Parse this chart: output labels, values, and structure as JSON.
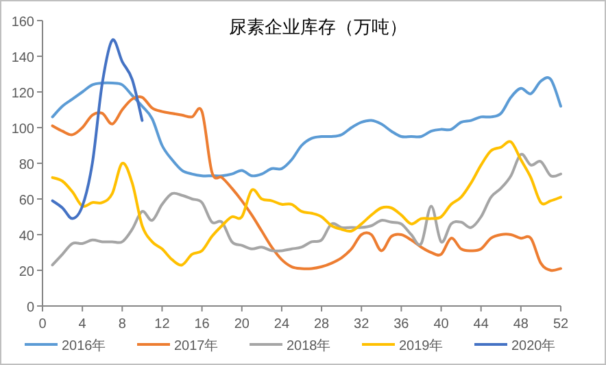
{
  "chart_data": {
    "type": "line",
    "title": "尿素企业库存（万吨）",
    "x": [
      1,
      2,
      3,
      4,
      5,
      6,
      7,
      8,
      9,
      10,
      11,
      12,
      13,
      14,
      15,
      16,
      17,
      18,
      19,
      20,
      21,
      22,
      23,
      24,
      25,
      26,
      27,
      28,
      29,
      30,
      31,
      32,
      33,
      34,
      35,
      36,
      37,
      38,
      39,
      40,
      41,
      42,
      43,
      44,
      45,
      46,
      47,
      48,
      49,
      50,
      51,
      52
    ],
    "series": [
      {
        "name": "2016年",
        "color": "#5b9bd5",
        "values": [
          106,
          112,
          116,
          120,
          124,
          125,
          125,
          124,
          118,
          112,
          105,
          90,
          82,
          76,
          74,
          73,
          73,
          73,
          74,
          76,
          73,
          74,
          77,
          77,
          82,
          90,
          94,
          95,
          95,
          96,
          100,
          103,
          104,
          102,
          98,
          95,
          95,
          95,
          98,
          99,
          99,
          103,
          104,
          106,
          106,
          108,
          117,
          122,
          119,
          126,
          127,
          112
        ]
      },
      {
        "name": "2017年",
        "color": "#ed7d31",
        "values": [
          101,
          98,
          96,
          100,
          107,
          108,
          102,
          110,
          116,
          117,
          111,
          109,
          108,
          107,
          106,
          109,
          75,
          72,
          66,
          59,
          51,
          42,
          33,
          26,
          22,
          21,
          21,
          22,
          24,
          27,
          32,
          40,
          40,
          31,
          39,
          40,
          37,
          33,
          30,
          29,
          38,
          32,
          31,
          32,
          38,
          40,
          40,
          38,
          38,
          24,
          20,
          21
        ]
      },
      {
        "name": "2018年",
        "color": "#a5a5a5",
        "values": [
          23,
          29,
          35,
          35,
          37,
          36,
          36,
          36,
          43,
          53,
          48,
          57,
          63,
          62,
          60,
          58,
          47,
          47,
          36,
          34,
          32,
          33,
          31,
          31,
          32,
          33,
          36,
          37,
          46,
          44,
          44,
          44,
          45,
          48,
          47,
          46,
          40,
          35,
          56,
          36,
          46,
          47,
          44,
          50,
          61,
          66,
          73,
          85,
          79,
          81,
          73,
          74
        ]
      },
      {
        "name": "2019年",
        "color": "#ffc000",
        "values": [
          72,
          70,
          64,
          56,
          58,
          58,
          63,
          80,
          69,
          45,
          36,
          32,
          26,
          23,
          29,
          31,
          39,
          45,
          50,
          50,
          65,
          60,
          59,
          57,
          57,
          53,
          52,
          50,
          45,
          43,
          42,
          46,
          51,
          55,
          55,
          51,
          46,
          49,
          49,
          50,
          57,
          61,
          69,
          79,
          87,
          89,
          92,
          82,
          72,
          58,
          59,
          61
        ]
      },
      {
        "name": "2020年",
        "color": "#4472c4",
        "x": [
          1,
          2,
          3,
          4,
          5,
          6,
          7,
          8,
          9,
          10
        ],
        "values": [
          59,
          55,
          49,
          56,
          80,
          125,
          149,
          137,
          127,
          104
        ]
      }
    ],
    "xlim": [
      0,
      52
    ],
    "xticks": [
      0,
      4,
      8,
      12,
      16,
      20,
      24,
      28,
      32,
      36,
      40,
      44,
      48,
      52
    ],
    "ylim": [
      0,
      160
    ],
    "yticks": [
      0,
      20,
      40,
      60,
      80,
      100,
      120,
      140,
      160
    ],
    "grid": false,
    "legend": "bottom",
    "marker": "none",
    "line_style": "solid"
  }
}
